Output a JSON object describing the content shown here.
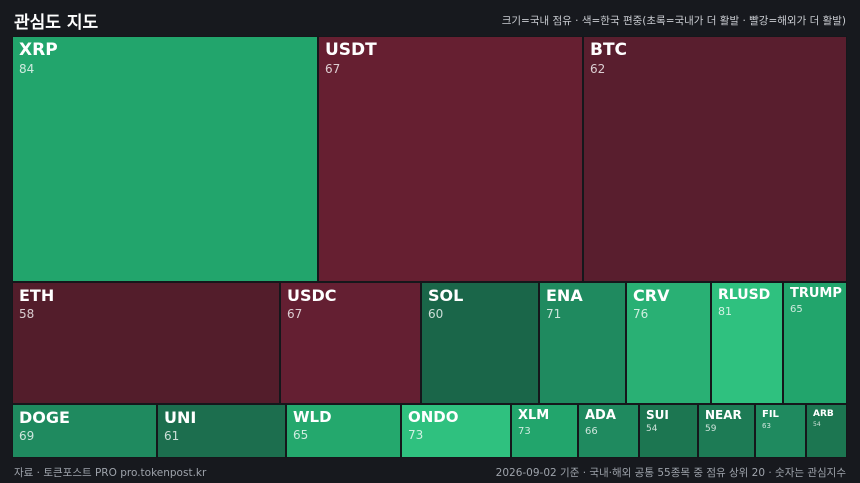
{
  "header": {
    "title": "관심도 지도",
    "legend": "크기=국내 점유 · 색=한국 편중(초록=국내가 더 활발 · 빨강=해외가 더 활발)"
  },
  "tiles": [
    {
      "symbol": "XRP",
      "value": "84",
      "color": "#22a56c"
    },
    {
      "symbol": "USDT",
      "value": "67",
      "color": "#661f31"
    },
    {
      "symbol": "BTC",
      "value": "62",
      "color": "#591e2e"
    },
    {
      "symbol": "ETH",
      "value": "58",
      "color": "#531d2b"
    },
    {
      "symbol": "USDC",
      "value": "67",
      "color": "#641f32"
    },
    {
      "symbol": "SOL",
      "value": "60",
      "color": "#1a6649"
    },
    {
      "symbol": "ENA",
      "value": "71",
      "color": "#1f8a5f"
    },
    {
      "symbol": "CRV",
      "value": "76",
      "color": "#29b074"
    },
    {
      "symbol": "RLUSD",
      "value": "81",
      "color": "#2fc17f"
    },
    {
      "symbol": "TRUMP",
      "value": "65",
      "color": "#22a56c"
    },
    {
      "symbol": "DOGE",
      "value": "69",
      "color": "#1f8a5f"
    },
    {
      "symbol": "UNI",
      "value": "61",
      "color": "#1c6e4e"
    },
    {
      "symbol": "WLD",
      "value": "65",
      "color": "#24a86d"
    },
    {
      "symbol": "ONDO",
      "value": "73",
      "color": "#2fc17f"
    },
    {
      "symbol": "XLM",
      "value": "73",
      "color": "#22a56c"
    },
    {
      "symbol": "ADA",
      "value": "66",
      "color": "#1f8a5f"
    },
    {
      "symbol": "SUI",
      "value": "54",
      "color": "#1c7651"
    },
    {
      "symbol": "NEAR",
      "value": "59",
      "color": "#1d7b55"
    },
    {
      "symbol": "FIL",
      "value": "63",
      "color": "#1f8a5f"
    },
    {
      "symbol": "ARB",
      "value": "54",
      "color": "#1c7651"
    }
  ],
  "footer": {
    "source": "자료 · 토큰포스트 PRO  pro.tokenpost.kr",
    "note": "2026-09-02 기준 · 국내·해외 공통 55종목 중 점유 상위 20 · 숫자는 관심지수"
  }
}
